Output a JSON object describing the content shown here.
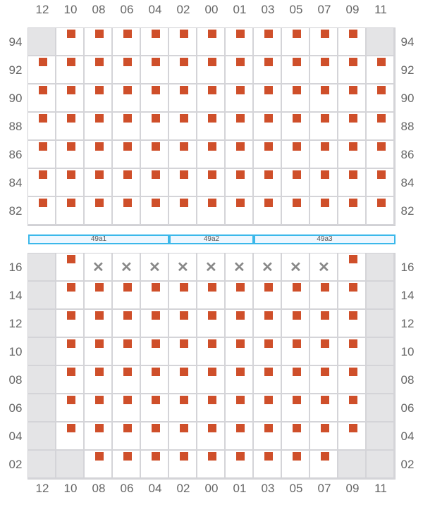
{
  "columns": [
    "12",
    "10",
    "08",
    "06",
    "04",
    "02",
    "00",
    "01",
    "03",
    "05",
    "07",
    "09",
    "11"
  ],
  "top_grid": {
    "rows": [
      {
        "label": "94",
        "cells": "gsssssssssssg"
      },
      {
        "label": "92",
        "cells": "sssssssssssss"
      },
      {
        "label": "90",
        "cells": "sssssssssssss"
      },
      {
        "label": "88",
        "cells": "sssssssssssss"
      },
      {
        "label": "86",
        "cells": "sssssssssssss"
      },
      {
        "label": "84",
        "cells": "sssssssssssss"
      },
      {
        "label": "82",
        "cells": "sssssssssssss"
      }
    ]
  },
  "bottom_grid": {
    "rows": [
      {
        "label": "16",
        "cells": "gsxxxxxxxxxsg"
      },
      {
        "label": "14",
        "cells": "gsssssssssssg"
      },
      {
        "label": "12",
        "cells": "gsssssssssssg"
      },
      {
        "label": "10",
        "cells": "gsssssssssssg"
      },
      {
        "label": "08",
        "cells": "gsssssssssssg"
      },
      {
        "label": "06",
        "cells": "gsssssssssssg"
      },
      {
        "label": "04",
        "cells": "gsssssssssssg"
      },
      {
        "label": "02",
        "cells": "ggsssssssssgg"
      }
    ]
  },
  "bars": [
    {
      "label": "49a1",
      "from": 0,
      "span": 5
    },
    {
      "label": "49a2",
      "from": 5,
      "span": 3
    },
    {
      "label": "49a3",
      "from": 8,
      "span": 5
    }
  ],
  "legend_codes": {
    "s": "occupied",
    "g": "unavailable",
    "x": "blocked"
  },
  "colors": {
    "occupied": "#cf4f2a",
    "unavailable": "#e4e4e6",
    "bar_border": "#3bb8ea"
  }
}
